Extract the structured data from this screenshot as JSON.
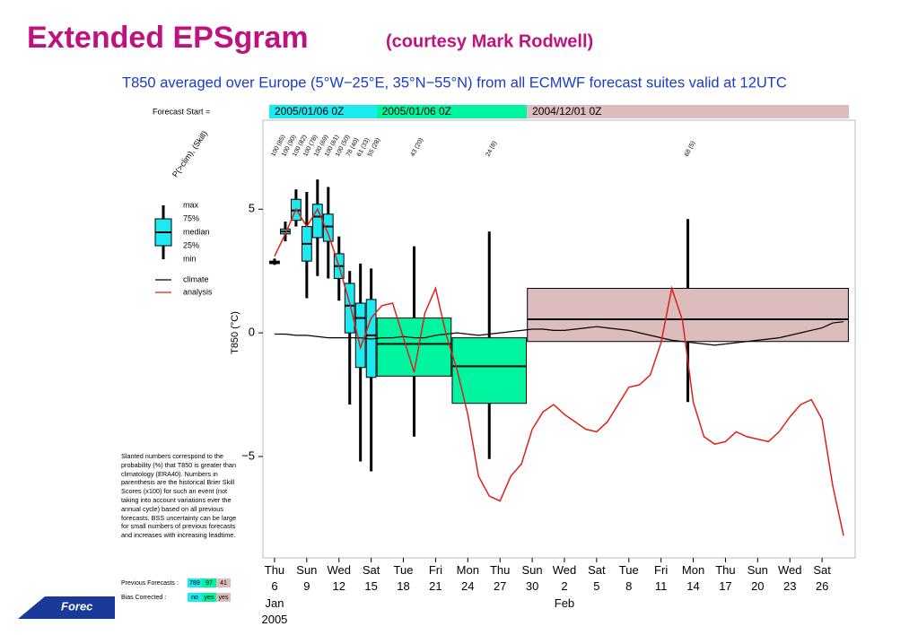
{
  "header": {
    "title": "Extended EPSgram",
    "subtitle": "(courtesy Mark Rodwell)"
  },
  "footer_text": "Forec",
  "chart_data": {
    "type": "box",
    "title": "T850 averaged over Europe (5°W−25°E, 35°N−55°N) from all ECMWF forecast suites valid at 12UTC",
    "ylabel": "T850 (°C)",
    "prob_title": "P(>clim), (Skill)",
    "forecast_start_label": "Forecast Start =",
    "forecast_starts": [
      {
        "label": "2005/01/06 0Z",
        "color": "#1de9f0",
        "start": "2005-01-06",
        "end": "2005-01-15"
      },
      {
        "label": "2005/01/06 0Z",
        "color": "#00f5a0",
        "start": "2005-01-16",
        "end": "2005-01-29"
      },
      {
        "label": "2004/12/01 0Z",
        "color": "#dcbcbc",
        "start": "2005-01-30",
        "end": "2005-02-28"
      }
    ],
    "box_legend": [
      "max",
      "75%",
      "median",
      "25%",
      "min"
    ],
    "boxes": [
      {
        "start": "2005-01-06",
        "end": "2005-01-06",
        "min": 2.75,
        "q1": 2.8,
        "median": 2.85,
        "q3": 2.9,
        "max": 3.0,
        "label": "100 (85)",
        "color": "#1de9f0"
      },
      {
        "start": "2005-01-07",
        "end": "2005-01-07",
        "min": 3.7,
        "q1": 4.0,
        "median": 4.1,
        "q3": 4.2,
        "max": 4.5,
        "label": "100 (90)",
        "color": "#1de9f0"
      },
      {
        "start": "2005-01-08",
        "end": "2005-01-08",
        "min": 4.3,
        "q1": 4.55,
        "median": 4.95,
        "q3": 5.4,
        "max": 5.8,
        "label": "100 (82)",
        "color": "#1de9f0"
      },
      {
        "start": "2005-01-09",
        "end": "2005-01-09",
        "min": 1.4,
        "q1": 2.9,
        "median": 3.6,
        "q3": 4.3,
        "max": 5.7,
        "label": "100 (78)",
        "color": "#1de9f0"
      },
      {
        "start": "2005-01-10",
        "end": "2005-01-10",
        "min": 2.3,
        "q1": 3.85,
        "median": 4.7,
        "q3": 5.2,
        "max": 6.2,
        "label": "100 (69)",
        "color": "#1de9f0"
      },
      {
        "start": "2005-01-11",
        "end": "2005-01-11",
        "min": 2.2,
        "q1": 3.7,
        "median": 4.3,
        "q3": 4.8,
        "max": 5.9,
        "label": "100 (61)",
        "color": "#1de9f0"
      },
      {
        "start": "2005-01-12",
        "end": "2005-01-12",
        "min": 1.3,
        "q1": 2.2,
        "median": 2.7,
        "q3": 3.2,
        "max": 3.9,
        "label": "100 (50)",
        "color": "#1de9f0"
      },
      {
        "start": "2005-01-13",
        "end": "2005-01-13",
        "min": -2.9,
        "q1": 0.0,
        "median": 1.1,
        "q3": 2.0,
        "max": 2.5,
        "label": "78 (40)",
        "color": "#1de9f0"
      },
      {
        "start": "2005-01-14",
        "end": "2005-01-14",
        "min": -5.2,
        "q1": -1.4,
        "median": 0.6,
        "q3": 1.2,
        "max": 2.8,
        "label": "61 (33)",
        "color": "#1de9f0"
      },
      {
        "start": "2005-01-15",
        "end": "2005-01-15",
        "min": -5.6,
        "q1": -1.8,
        "median": -0.1,
        "q3": 1.35,
        "max": 2.6,
        "label": "55 (28)",
        "color": "#1de9f0"
      },
      {
        "start": "2005-01-16",
        "end": "2005-01-22",
        "min": -4.2,
        "q1": -1.75,
        "median": -0.45,
        "q3": 0.6,
        "max": 3.5,
        "label": "43 (20)",
        "color": "#00f5a0"
      },
      {
        "start": "2005-01-23",
        "end": "2005-01-29",
        "min": -5.1,
        "q1": -2.85,
        "median": -1.35,
        "q3": -0.2,
        "max": 4.1,
        "label": "24 (8)",
        "color": "#00f5a0"
      },
      {
        "start": "2005-01-30",
        "end": "2005-02-28",
        "min": -2.8,
        "q1": -0.35,
        "median": 0.55,
        "q3": 1.8,
        "max": 4.6,
        "label": "68 (5)",
        "color": "#dcbcbc"
      }
    ],
    "x": [
      "2005-01-06",
      "2005-01-07",
      "2005-01-08",
      "2005-01-09",
      "2005-01-10",
      "2005-01-11",
      "2005-01-12",
      "2005-01-13",
      "2005-01-14",
      "2005-01-15",
      "2005-01-16",
      "2005-01-17",
      "2005-01-18",
      "2005-01-19",
      "2005-01-20",
      "2005-01-21",
      "2005-01-22",
      "2005-01-23",
      "2005-01-24",
      "2005-01-25",
      "2005-01-26",
      "2005-01-27",
      "2005-01-28",
      "2005-01-29",
      "2005-01-30",
      "2005-01-31",
      "2005-02-01",
      "2005-02-02",
      "2005-02-03",
      "2005-02-04",
      "2005-02-05",
      "2005-02-06",
      "2005-02-07",
      "2005-02-08",
      "2005-02-09",
      "2005-02-10",
      "2005-02-11",
      "2005-02-12",
      "2005-02-13",
      "2005-02-14",
      "2005-02-15",
      "2005-02-16",
      "2005-02-17",
      "2005-02-18",
      "2005-02-19",
      "2005-02-20",
      "2005-02-21",
      "2005-02-22",
      "2005-02-23",
      "2005-02-24",
      "2005-02-25",
      "2005-02-26",
      "2005-02-27",
      "2005-02-28"
    ],
    "series": [
      {
        "name": "climate",
        "color": "#000000",
        "values": [
          -0.05,
          -0.05,
          -0.1,
          -0.1,
          -0.15,
          -0.2,
          -0.2,
          -0.2,
          -0.2,
          -0.25,
          -0.2,
          -0.2,
          -0.15,
          -0.2,
          -0.2,
          -0.1,
          -0.05,
          0,
          -0.05,
          -0.1,
          -0.05,
          0,
          0.05,
          0.1,
          0.15,
          0.15,
          0.1,
          0.1,
          0.15,
          0.2,
          0.25,
          0.2,
          0.15,
          0.1,
          0,
          -0.1,
          -0.2,
          -0.3,
          -0.35,
          -0.4,
          -0.45,
          -0.5,
          -0.45,
          -0.4,
          -0.35,
          -0.3,
          -0.25,
          -0.2,
          -0.1,
          0,
          0.1,
          0.2,
          0.4,
          0.45
        ]
      },
      {
        "name": "analysis",
        "color": "#e0201a",
        "values": [
          3.1,
          4.0,
          5.0,
          4.3,
          5.0,
          4.0,
          2.7,
          1.2,
          -0.6,
          0.6,
          1.1,
          1.2,
          -0.2,
          -1.6,
          0.8,
          1.8,
          -0.1,
          -1.5,
          -3.3,
          -5.8,
          -6.6,
          -6.8,
          -5.8,
          -5.3,
          -3.9,
          -3.2,
          -2.9,
          -3.3,
          -3.6,
          -3.9,
          -4.0,
          -3.6,
          -2.9,
          -2.2,
          -2.1,
          -1.7,
          -0.4,
          1.8,
          0.5,
          -2.8,
          -4.2,
          -4.5,
          -4.4,
          -4.0,
          -4.2,
          -4.3,
          -4.4,
          -4.0,
          -3.4,
          -2.9,
          -2.7,
          -3.5,
          -6.2,
          -8.2
        ]
      }
    ],
    "xlim": [
      "2005-01-05",
      "2005-03-01"
    ],
    "ylim": [
      -9.1,
      8.6
    ],
    "yticks": [
      {
        "value": -5,
        "label": "−5"
      },
      0,
      5
    ],
    "xticks": [
      {
        "value": "2005-01-06",
        "label": "Thu 6"
      },
      {
        "value": "2005-01-09",
        "label": "Sun 9"
      },
      {
        "value": "2005-01-12",
        "label": "Wed 12"
      },
      {
        "value": "2005-01-15",
        "label": "Sat 15"
      },
      {
        "value": "2005-01-18",
        "label": "Tue 18"
      },
      {
        "value": "2005-01-21",
        "label": "Fri 21"
      },
      {
        "value": "2005-01-24",
        "label": "Mon 24"
      },
      {
        "value": "2005-01-27",
        "label": "Thu 27"
      },
      {
        "value": "2005-01-30",
        "label": "Sun 30"
      },
      {
        "value": "2005-02-02",
        "label": "Wed 2"
      },
      {
        "value": "2005-02-05",
        "label": "Sat 5"
      },
      {
        "value": "2005-02-08",
        "label": "Tue 8"
      },
      {
        "value": "2005-02-11",
        "label": "Fri 11"
      },
      {
        "value": "2005-02-14",
        "label": "Mon 14"
      },
      {
        "value": "2005-02-17",
        "label": "Thu 17"
      },
      {
        "value": "2005-02-20",
        "label": "Sun 20"
      },
      {
        "value": "2005-02-23",
        "label": "Wed 23"
      },
      {
        "value": "2005-02-26",
        "label": "Sat 26"
      }
    ],
    "month_labels": [
      {
        "value": "2005-01-06",
        "label": "Jan"
      },
      {
        "value": "2005-02-02",
        "label": "Feb"
      }
    ],
    "year_label": {
      "value": "2005-01-06",
      "label": "2005"
    },
    "note": "Slanted numbers correspond to the probability (%) that T850 is greater than climatology (ERA40). Numbers in parenthesis are the historical Brier Skill Scores (x100) for such an event (not taking into account variations ever the annual cycle) based on all previous forecasts. BSS uncertainty can be large for small numbers of previous forecasts and increases with increasing leadtime.",
    "previous_forecasts": {
      "label": "Previous Forecasts :",
      "cells": [
        "789",
        "97",
        "41"
      ]
    },
    "bias_corrected": {
      "label": "Bias Corrected :",
      "cells": [
        "no",
        "yes",
        "yes"
      ]
    }
  }
}
